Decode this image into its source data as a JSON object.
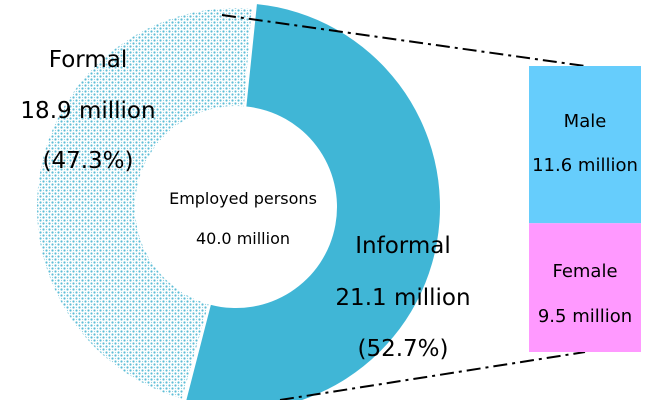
{
  "chart_data": {
    "type": "pie",
    "style": "donut",
    "center_label": {
      "line1": "Employed persons",
      "line2": "40.0 million"
    },
    "total": 40.0,
    "unit": "million",
    "slices": [
      {
        "name": "Informal",
        "value": 21.1,
        "value_text": "21.1 million",
        "percent_text": "(52.7%)",
        "percent": 52.7,
        "color": "#40b6d6",
        "pattern": "solid"
      },
      {
        "name": "Formal",
        "value": 18.9,
        "value_text": "18.9 million",
        "percent_text": "(47.3%)",
        "percent": 47.3,
        "color": "#5bbdd6",
        "pattern": "dotted-lattice"
      }
    ],
    "breakdown": {
      "of": "Informal",
      "type": "stacked-bar",
      "segments": [
        {
          "name": "Male",
          "value": 11.6,
          "value_text": "11.6 million",
          "color": "#66cdfc"
        },
        {
          "name": "Female",
          "value": 9.5,
          "value_text": "9.5 million",
          "color": "#ff99ff"
        }
      ]
    },
    "connector_style": "dash-dot"
  }
}
